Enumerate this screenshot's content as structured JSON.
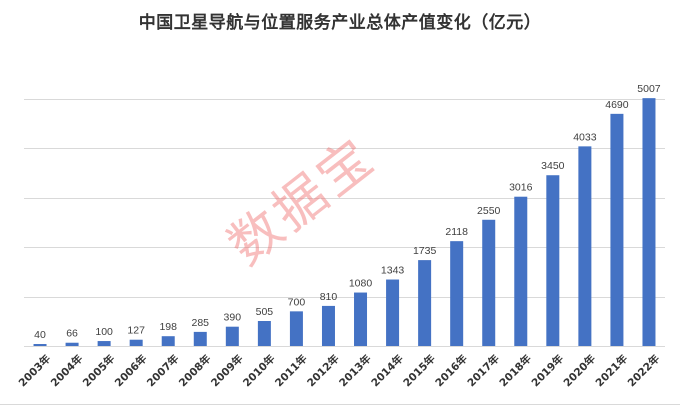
{
  "chart_data": {
    "type": "bar",
    "title": "中国卫星导航与位置服务产业总体产值变化（亿元）",
    "xlabel": "",
    "ylabel": "",
    "categories": [
      "2003年",
      "2004年",
      "2005年",
      "2006年",
      "2007年",
      "2008年",
      "2009年",
      "2010年",
      "2011年",
      "2012年",
      "2013年",
      "2014年",
      "2015年",
      "2016年",
      "2017年",
      "2018年",
      "2019年",
      "2020年",
      "2021年",
      "2022年"
    ],
    "values": [
      40,
      66,
      100,
      127,
      198,
      285,
      390,
      505,
      700,
      810,
      1080,
      1343,
      1735,
      2118,
      2550,
      3016,
      3450,
      4033,
      4690,
      5007
    ],
    "ylim": [
      0,
      5000
    ],
    "grid": true,
    "gridlines": [
      0,
      1000,
      2000,
      3000,
      4000,
      5000
    ],
    "bar_color": "#4472C4",
    "legend": "none"
  },
  "watermark": "数据宝"
}
